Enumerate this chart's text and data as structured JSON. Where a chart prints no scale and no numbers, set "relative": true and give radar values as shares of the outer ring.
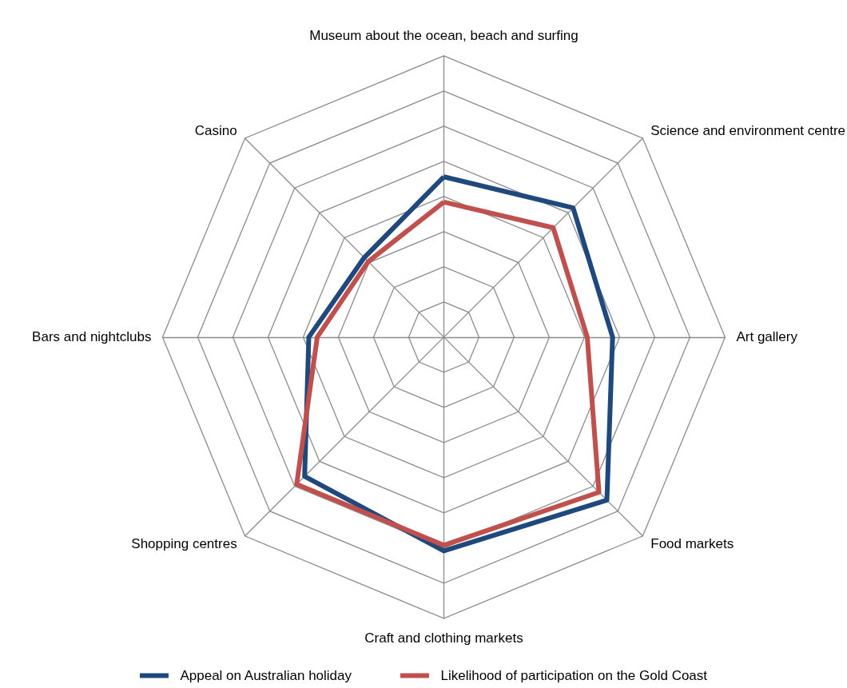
{
  "chart_data": {
    "type": "radar",
    "relative": true,
    "categories": [
      "Museum about the ocean, beach and surfing",
      "Science and environment centre",
      "Art gallery",
      "Food markets",
      "Craft and clothing markets",
      "Shopping centres",
      "Bars and nightclubs",
      "Casino"
    ],
    "series": [
      {
        "name": "Appeal on Australian holiday",
        "color": "#1f497d",
        "values": [
          0.57,
          0.65,
          0.6,
          0.82,
          0.76,
          0.7,
          0.48,
          0.4
        ]
      },
      {
        "name": "Likelihood of participation on the Gold Coast",
        "color": "#c0504d",
        "values": [
          0.48,
          0.55,
          0.51,
          0.78,
          0.74,
          0.74,
          0.45,
          0.38
        ]
      }
    ],
    "legend": "bottom",
    "marker": "none",
    "line_style": "solid"
  }
}
